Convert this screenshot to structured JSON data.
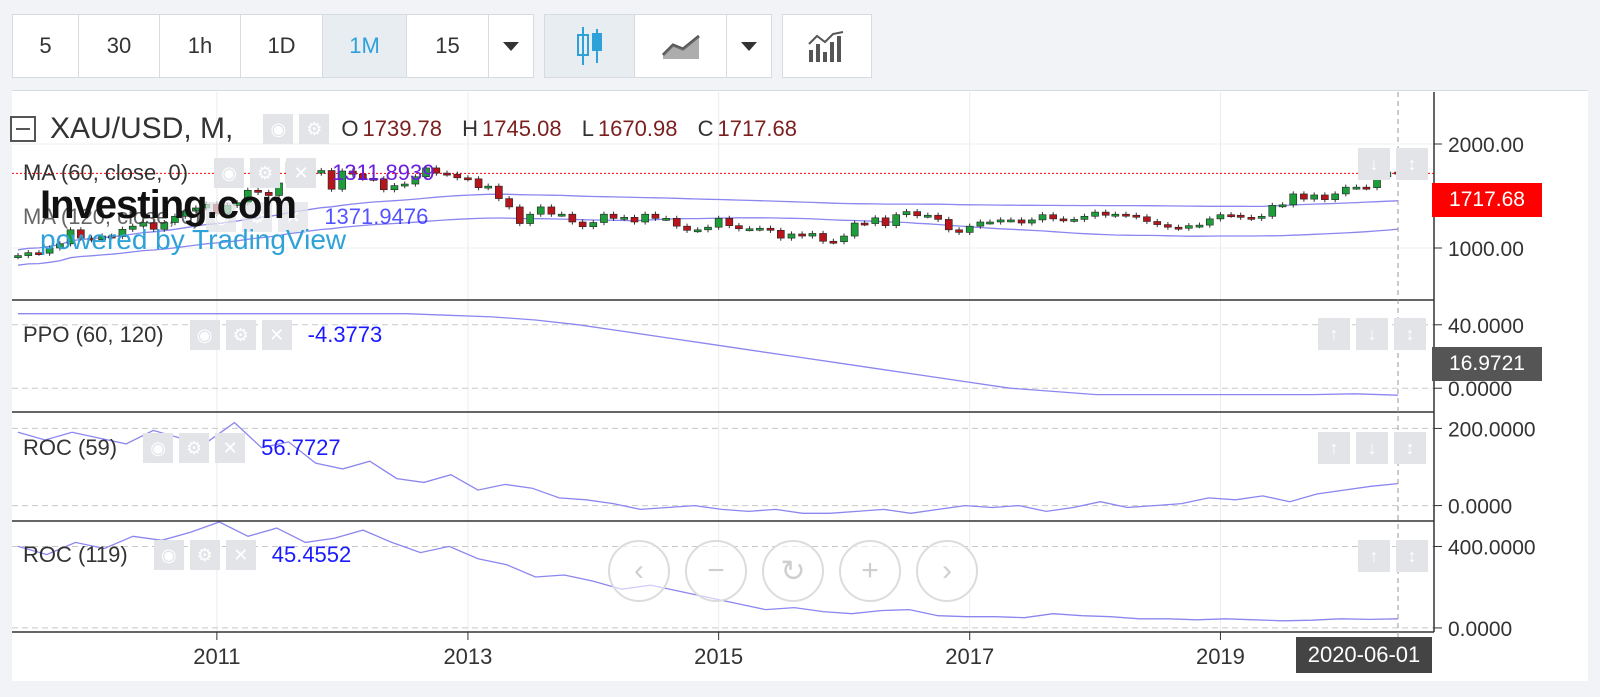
{
  "toolbar": {
    "intervals": [
      "5",
      "30",
      "1h",
      "1D",
      "1M",
      "15"
    ],
    "active_interval": "1M"
  },
  "main": {
    "symbol": "XAU/USD, M,",
    "ohlc": {
      "o_label": "O",
      "o": "1739.78",
      "h_label": "H",
      "h": "1745.08",
      "l_label": "L",
      "l": "1670.98",
      "c_label": "C",
      "c": "1717.68"
    },
    "ma1_label": "MA (60, close, 0)",
    "ma1_value": "1311.8939",
    "ma2_label": "MA (120, close, 0)",
    "ma2_value": "1371.9476",
    "last_price": "1717.68",
    "watermark_brand": "Investing.com",
    "watermark_sub": "powered by TradingView"
  },
  "ppo": {
    "label": "PPO (60, 120)",
    "value": "-4.3773",
    "tag": "16.9721"
  },
  "roc59": {
    "label": "ROC (59)",
    "value": "56.7727"
  },
  "roc119": {
    "label": "ROC (119)",
    "value": "45.4552"
  },
  "crosshair_date": "2020-06-01",
  "colors": {
    "up": "#1e9e3a",
    "down": "#b5151b",
    "line": "#8b86f0",
    "price_tag": "#ff0000",
    "value": "#1a1aff"
  },
  "chart_data": [
    {
      "type": "candlestick",
      "pane": "main",
      "x_ticks": [
        "2011",
        "2013",
        "2015",
        "2017",
        "2019"
      ],
      "y_ticks": [
        "1000.00",
        "2000.00"
      ],
      "ylim": [
        500,
        2500
      ],
      "x_range": [
        "2009-06-01",
        "2020-06-01"
      ],
      "series": [
        {
          "name": "XAU/USD",
          "x": [
            "2009-06-01",
            "2009-07-01",
            "2009-08-01",
            "2009-09-01",
            "2009-10-01",
            "2009-11-01",
            "2009-12-01",
            "2010-01-01",
            "2010-02-01",
            "2010-03-01",
            "2010-04-01",
            "2010-05-01",
            "2010-06-01",
            "2010-07-01",
            "2010-08-01",
            "2010-09-01",
            "2010-10-01",
            "2010-11-01",
            "2010-12-01",
            "2011-01-01",
            "2011-02-01",
            "2011-03-01",
            "2011-04-01",
            "2011-05-01",
            "2011-06-01",
            "2011-07-01",
            "2011-08-01",
            "2011-09-01",
            "2011-10-01",
            "2011-11-01",
            "2011-12-01",
            "2012-01-01",
            "2012-02-01",
            "2012-03-01",
            "2012-04-01",
            "2012-05-01",
            "2012-06-01",
            "2012-07-01",
            "2012-08-01",
            "2012-09-01",
            "2012-10-01",
            "2012-11-01",
            "2012-12-01",
            "2013-01-01",
            "2013-02-01",
            "2013-03-01",
            "2013-04-01",
            "2013-05-01",
            "2013-06-01",
            "2013-07-01",
            "2013-08-01",
            "2013-09-01",
            "2013-10-01",
            "2013-11-01",
            "2013-12-01",
            "2014-01-01",
            "2014-02-01",
            "2014-03-01",
            "2014-04-01",
            "2014-05-01",
            "2014-06-01",
            "2014-07-01",
            "2014-08-01",
            "2014-09-01",
            "2014-10-01",
            "2014-11-01",
            "2014-12-01",
            "2015-01-01",
            "2015-02-01",
            "2015-03-01",
            "2015-04-01",
            "2015-05-01",
            "2015-06-01",
            "2015-07-01",
            "2015-08-01",
            "2015-09-01",
            "2015-10-01",
            "2015-11-01",
            "2015-12-01",
            "2016-01-01",
            "2016-02-01",
            "2016-03-01",
            "2016-04-01",
            "2016-05-01",
            "2016-06-01",
            "2016-07-01",
            "2016-08-01",
            "2016-09-01",
            "2016-10-01",
            "2016-11-01",
            "2016-12-01",
            "2017-01-01",
            "2017-02-01",
            "2017-03-01",
            "2017-04-01",
            "2017-05-01",
            "2017-06-01",
            "2017-07-01",
            "2017-08-01",
            "2017-09-01",
            "2017-10-01",
            "2017-11-01",
            "2017-12-01",
            "2018-01-01",
            "2018-02-01",
            "2018-03-01",
            "2018-04-01",
            "2018-05-01",
            "2018-06-01",
            "2018-07-01",
            "2018-08-01",
            "2018-09-01",
            "2018-10-01",
            "2018-11-01",
            "2018-12-01",
            "2019-01-01",
            "2019-02-01",
            "2019-03-01",
            "2019-04-01",
            "2019-05-01",
            "2019-06-01",
            "2019-07-01",
            "2019-08-01",
            "2019-09-01",
            "2019-10-01",
            "2019-11-01",
            "2019-12-01",
            "2020-01-01",
            "2020-02-01",
            "2020-03-01",
            "2020-04-01",
            "2020-05-01",
            "2020-06-01"
          ],
          "close": [
            927,
            955,
            950,
            1000,
            1040,
            1175,
            1095,
            1080,
            1115,
            1110,
            1180,
            1210,
            1245,
            1180,
            1245,
            1305,
            1355,
            1385,
            1420,
            1330,
            1410,
            1435,
            1555,
            1535,
            1505,
            1625,
            1825,
            1620,
            1720,
            1745,
            1565,
            1740,
            1710,
            1670,
            1665,
            1560,
            1600,
            1615,
            1685,
            1770,
            1720,
            1710,
            1675,
            1665,
            1580,
            1595,
            1475,
            1395,
            1235,
            1325,
            1395,
            1325,
            1325,
            1250,
            1205,
            1245,
            1325,
            1285,
            1295,
            1250,
            1325,
            1285,
            1285,
            1210,
            1170,
            1175,
            1200,
            1285,
            1215,
            1185,
            1185,
            1190,
            1170,
            1095,
            1135,
            1115,
            1140,
            1065,
            1060,
            1115,
            1240,
            1235,
            1290,
            1215,
            1320,
            1350,
            1310,
            1315,
            1275,
            1175,
            1150,
            1210,
            1250,
            1250,
            1270,
            1270,
            1240,
            1270,
            1320,
            1280,
            1270,
            1275,
            1305,
            1345,
            1315,
            1325,
            1315,
            1300,
            1255,
            1225,
            1200,
            1190,
            1215,
            1220,
            1280,
            1320,
            1315,
            1295,
            1285,
            1305,
            1410,
            1415,
            1520,
            1470,
            1510,
            1465,
            1520,
            1585,
            1585,
            1580,
            1685,
            1730,
            1718
          ]
        }
      ]
    },
    {
      "type": "line",
      "pane": "ppo",
      "y_ticks": [
        "40.0000",
        "0.0000"
      ],
      "ylim": [
        -15,
        55
      ],
      "series": [
        {
          "name": "PPO (60, 120)",
          "x_range": [
            "2009-06-01",
            "2020-06-01"
          ],
          "values": [
            47,
            47,
            47,
            47,
            47,
            47,
            47,
            47,
            47,
            47,
            46,
            45,
            43,
            40,
            36,
            32,
            28,
            24,
            20,
            16,
            12,
            8,
            4,
            0,
            -2,
            -4,
            -4,
            -4,
            -4,
            -4,
            -4,
            -3.5,
            -4.4
          ]
        }
      ]
    },
    {
      "type": "line",
      "pane": "roc59",
      "y_ticks": [
        "200.0000",
        "0.0000"
      ],
      "ylim": [
        -40,
        240
      ],
      "series": [
        {
          "name": "ROC (59)",
          "x_range": [
            "2009-06-01",
            "2020-06-01"
          ],
          "values": [
            190,
            170,
            190,
            175,
            160,
            195,
            175,
            165,
            215,
            150,
            165,
            110,
            95,
            115,
            70,
            60,
            80,
            40,
            55,
            45,
            20,
            15,
            5,
            -10,
            -5,
            0,
            -10,
            -15,
            -10,
            -20,
            -20,
            -15,
            -10,
            -20,
            -10,
            0,
            -5,
            0,
            -15,
            -5,
            10,
            -5,
            0,
            5,
            20,
            15,
            25,
            10,
            30,
            40,
            50,
            57
          ]
        }
      ]
    },
    {
      "type": "line",
      "pane": "roc119",
      "y_ticks": [
        "400.0000",
        "0.0000"
      ],
      "ylim": [
        -20,
        520
      ],
      "series": [
        {
          "name": "ROC (119)",
          "x_range": [
            "2009-06-01",
            "2020-06-01"
          ],
          "values": [
            400,
            360,
            420,
            390,
            450,
            430,
            470,
            520,
            450,
            490,
            420,
            440,
            480,
            420,
            370,
            400,
            340,
            310,
            250,
            260,
            230,
            190,
            210,
            180,
            150,
            120,
            90,
            100,
            80,
            70,
            85,
            90,
            60,
            55,
            55,
            50,
            70,
            60,
            55,
            45,
            45,
            40,
            45,
            40,
            35,
            38,
            45,
            42,
            45
          ]
        }
      ]
    }
  ]
}
